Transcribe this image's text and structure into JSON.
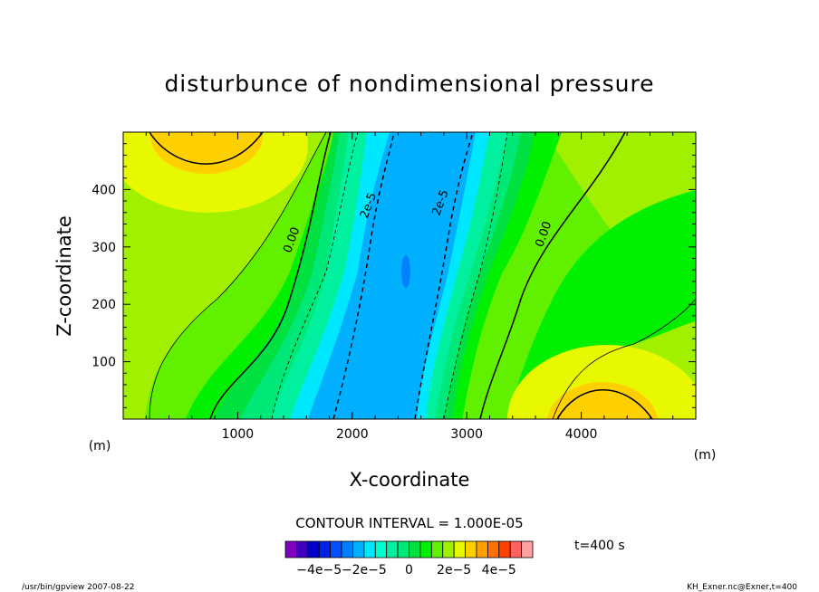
{
  "chart_data": {
    "type": "heatmap",
    "title": "disturbunce of nondimensional pressure",
    "xlabel": "X-coordinate",
    "ylabel": "Z-coordinate",
    "x_unit": "(m)",
    "y_unit": "(m)",
    "xlim": [
      0,
      5000
    ],
    "ylim": [
      0,
      500
    ],
    "x_ticks": [
      "1000",
      "2000",
      "3000",
      "4000"
    ],
    "y_ticks": [
      "100",
      "200",
      "300",
      "400"
    ],
    "contour_labels": [
      {
        "text": "0.00",
        "x": 1500,
        "y": 310
      },
      {
        "text": "2e-5",
        "x": 2170,
        "y": 370
      },
      {
        "text": "2e-5",
        "x": 2800,
        "y": 375
      },
      {
        "text": "0.00",
        "x": 3700,
        "y": 320
      }
    ],
    "contour_interval": "CONTOUR INTERVAL = 1.000E-05",
    "time_label": "t=400 s",
    "colorbar": {
      "tick_labels": [
        "−4e−5",
        "−2e−5",
        "0",
        "2e−5",
        "4e−5"
      ],
      "tick_values": [
        -4e-05,
        -2e-05,
        0,
        2e-05,
        4e-05
      ],
      "colors": [
        "#8000c0",
        "#4000c0",
        "#0000c8",
        "#0020e8",
        "#0050ff",
        "#0080ff",
        "#00b0ff",
        "#00e8ff",
        "#00ffd0",
        "#00f0a0",
        "#00e878",
        "#00e040",
        "#00f000",
        "#60f000",
        "#a0f000",
        "#e8f800",
        "#ffd000",
        "#ffa000",
        "#ff7000",
        "#ff4000",
        "#ff6060",
        "#ffa0a0"
      ]
    },
    "footer_left": "/usr/bin/gpview  2007-08-22",
    "footer_right": "KH_Exner.nc@Exner,t=400"
  }
}
